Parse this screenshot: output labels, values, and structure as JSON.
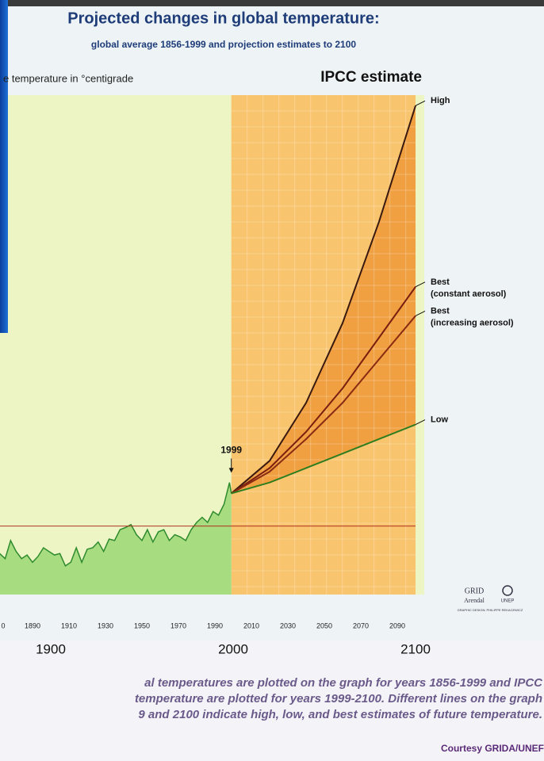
{
  "chart_data": {
    "type": "line",
    "title": "Projected changes in global temperature:",
    "subtitle": "global average 1856-1999 and projection estimates to 2100",
    "y_label": "e temperature in °centigrade",
    "legend_title": "IPCC estimate",
    "xlim": [
      1872,
      2100
    ],
    "ylim": [
      -1,
      6
    ],
    "reference_line": 0,
    "xticks": [
      {
        "value": 1870,
        "label": "0"
      },
      1890,
      1910,
      1930,
      1950,
      1970,
      1990,
      2010,
      2030,
      2050,
      2070,
      2090
    ],
    "major_xticks": [
      1900,
      2000,
      2100
    ],
    "annotation": {
      "text": "1999",
      "x": 1999,
      "y": 0.45
    },
    "history": {
      "color": "#2e8b2e",
      "x": [
        1872,
        1875,
        1878,
        1881,
        1884,
        1887,
        1890,
        1893,
        1896,
        1899,
        1902,
        1905,
        1908,
        1911,
        1914,
        1917,
        1920,
        1923,
        1926,
        1929,
        1932,
        1935,
        1938,
        1941,
        1944,
        1947,
        1950,
        1953,
        1956,
        1959,
        1962,
        1965,
        1968,
        1971,
        1974,
        1977,
        1980,
        1983,
        1986,
        1989,
        1992,
        1995,
        1998,
        1999
      ],
      "values": [
        -0.38,
        -0.45,
        -0.2,
        -0.35,
        -0.45,
        -0.4,
        -0.5,
        -0.42,
        -0.3,
        -0.35,
        -0.4,
        -0.38,
        -0.55,
        -0.5,
        -0.3,
        -0.5,
        -0.32,
        -0.3,
        -0.22,
        -0.35,
        -0.18,
        -0.2,
        -0.05,
        -0.02,
        0.02,
        -0.12,
        -0.2,
        -0.05,
        -0.22,
        -0.08,
        -0.05,
        -0.2,
        -0.12,
        -0.15,
        -0.2,
        -0.05,
        0.05,
        0.12,
        0.05,
        0.2,
        0.15,
        0.3,
        0.6,
        0.45
      ]
    },
    "series": [
      {
        "label_lines": [
          "High"
        ],
        "color": "#3a1a10",
        "x": [
          1999,
          2020,
          2040,
          2060,
          2080,
          2100
        ],
        "values": [
          0.45,
          0.9,
          1.7,
          2.8,
          4.2,
          5.8
        ]
      },
      {
        "label_lines": [
          "Best",
          "(constant aerosol)"
        ],
        "color": "#7a1e10",
        "x": [
          1999,
          2020,
          2040,
          2060,
          2080,
          2100
        ],
        "values": [
          0.45,
          0.8,
          1.3,
          1.9,
          2.6,
          3.3
        ]
      },
      {
        "label_lines": [
          "Best",
          "(increasing aerosol)"
        ],
        "color": "#8a2a12",
        "x": [
          1999,
          2020,
          2040,
          2060,
          2080,
          2100
        ],
        "values": [
          0.45,
          0.75,
          1.2,
          1.7,
          2.3,
          2.9
        ]
      },
      {
        "label_lines": [
          "Low"
        ],
        "color": "#2e7d1e",
        "x": [
          1999,
          2020,
          2040,
          2060,
          2080,
          2100
        ],
        "values": [
          0.45,
          0.6,
          0.8,
          1.0,
          1.2,
          1.4
        ]
      }
    ],
    "logo": [
      "GRID",
      "Arendal",
      "UNEP",
      "GRAPHIC DESIGN: PHILIPPE REKACEWICZ"
    ],
    "caption": [
      "al temperatures are plotted on the graph for years 1856-1999 and IPCC",
      "temperature are plotted for years 1999-2100. Different lines on the graph",
      "9 and 2100 indicate high, low, and best estimates of future temperature."
    ],
    "credit": "Courtesy GRIDA/UNEF"
  }
}
